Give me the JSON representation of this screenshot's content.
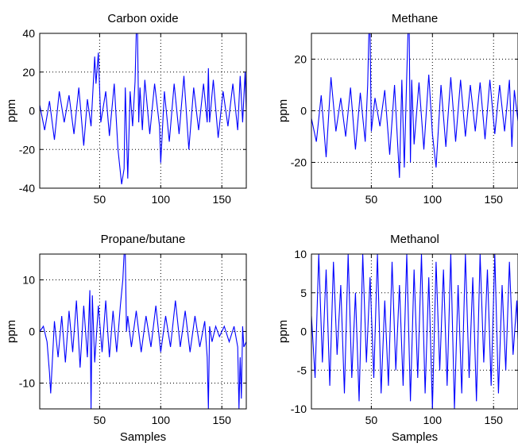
{
  "figure": {
    "background": "#ffffff",
    "line_color": "#0000ff",
    "grid_style": "dotted"
  },
  "chart_data": [
    {
      "type": "line",
      "title": "Carbon oxide",
      "xlabel": "",
      "ylabel": "ppm",
      "xlim": [
        1,
        170
      ],
      "ylim": [
        -40,
        40
      ],
      "xticks": [
        50,
        100,
        150
      ],
      "yticks": [
        -40,
        -20,
        0,
        20,
        40
      ],
      "grid": true,
      "series": [
        {
          "x": [
            1,
            5,
            9,
            13,
            17,
            21,
            25,
            29,
            33,
            37,
            40,
            43,
            46,
            47,
            49,
            51,
            55,
            58,
            62,
            65,
            68,
            70,
            71,
            73,
            75,
            77,
            79,
            80,
            81,
            82,
            83,
            85,
            87,
            91,
            95,
            99,
            100,
            103,
            107,
            111,
            115,
            119,
            123,
            127,
            131,
            135,
            138,
            139,
            140,
            143,
            147,
            151,
            155,
            159,
            163,
            165,
            167,
            169,
            170
          ],
          "y": [
            3,
            -10,
            5,
            -15,
            10,
            -6,
            8,
            -12,
            12,
            -18,
            6,
            -8,
            28,
            14,
            30,
            -6,
            10,
            -13,
            14,
            -20,
            -38,
            -30,
            12,
            -35,
            10,
            -8,
            15,
            40,
            40,
            -6,
            12,
            -10,
            16,
            -12,
            14,
            -8,
            -27,
            10,
            -16,
            14,
            -12,
            18,
            -20,
            12,
            -10,
            14,
            -6,
            22,
            -6,
            16,
            -14,
            10,
            -8,
            14,
            -10,
            18,
            -6,
            20,
            0
          ]
        }
      ]
    },
    {
      "type": "line",
      "title": "Methane",
      "xlabel": "",
      "ylabel": "ppm",
      "xlim": [
        1,
        170
      ],
      "ylim": [
        -30,
        30
      ],
      "xticks": [
        50,
        100,
        150
      ],
      "yticks": [
        -20,
        0,
        20
      ],
      "grid": true,
      "series": [
        {
          "x": [
            1,
            5,
            9,
            13,
            17,
            21,
            25,
            29,
            33,
            37,
            41,
            45,
            47,
            48,
            49,
            50,
            53,
            57,
            61,
            65,
            69,
            73,
            75,
            77,
            79,
            80,
            81,
            82,
            83,
            85,
            89,
            93,
            97,
            100,
            103,
            107,
            111,
            115,
            119,
            123,
            127,
            131,
            135,
            139,
            143,
            147,
            151,
            155,
            159,
            163,
            165,
            167,
            170
          ],
          "y": [
            -3,
            -12,
            6,
            -18,
            13,
            -8,
            5,
            -10,
            9,
            -15,
            7,
            -12,
            10,
            30,
            30,
            -8,
            5,
            -6,
            8,
            -17,
            10,
            -26,
            12,
            -22,
            14,
            30,
            30,
            -20,
            12,
            -13,
            11,
            -15,
            14,
            -9,
            -22,
            10,
            -14,
            13,
            -12,
            12,
            -10,
            10,
            -8,
            11,
            -11,
            12,
            -9,
            10,
            -8,
            12,
            -14,
            8,
            -4
          ]
        }
      ]
    },
    {
      "type": "line",
      "title": "Propane/butane",
      "xlabel": "",
      "ylabel": "ppm",
      "xlim": [
        1,
        170
      ],
      "ylim": [
        -15,
        15
      ],
      "xticks": [
        50,
        100,
        150
      ],
      "yticks": [
        -10,
        0,
        10
      ],
      "grid": true,
      "series": [
        {
          "x": [
            1,
            4,
            7,
            9,
            10,
            13,
            16,
            19,
            22,
            25,
            28,
            31,
            34,
            37,
            40,
            42,
            43,
            44,
            46,
            49,
            52,
            55,
            58,
            61,
            64,
            67,
            69,
            70,
            71,
            72,
            73,
            76,
            80,
            84,
            88,
            92,
            96,
            100,
            104,
            108,
            112,
            116,
            120,
            124,
            128,
            132,
            136,
            138,
            139,
            140,
            142,
            145,
            148,
            152,
            156,
            160,
            163,
            164,
            165,
            166,
            167,
            168,
            170
          ],
          "y": [
            0,
            1,
            -2,
            -8,
            -12,
            2,
            -5,
            3,
            -6,
            4,
            -4,
            6,
            -7,
            5,
            -5,
            8,
            -15,
            7,
            -6,
            5,
            -4,
            6,
            -5,
            4,
            -4,
            5,
            10,
            15,
            15,
            0,
            3,
            -3,
            4,
            -4,
            3,
            -3,
            5,
            -4,
            3,
            -3,
            6,
            -3,
            4,
            -4,
            3,
            -3,
            2,
            -5,
            -15,
            1,
            -2,
            1,
            -1,
            1,
            -2,
            1,
            -3,
            -15,
            -5,
            -13,
            1,
            -3,
            -2
          ]
        }
      ]
    },
    {
      "type": "line",
      "title": "Methanol",
      "xlabel": "",
      "ylabel": "ppm",
      "xlim": [
        1,
        170
      ],
      "ylim": [
        -10,
        10
      ],
      "xticks": [
        50,
        100,
        150
      ],
      "yticks": [
        -10,
        -5,
        0,
        5,
        10
      ],
      "grid": true,
      "series": [
        {
          "x": [
            1,
            4,
            7,
            10,
            13,
            16,
            19,
            22,
            25,
            28,
            31,
            34,
            37,
            40,
            43,
            46,
            49,
            52,
            55,
            58,
            61,
            64,
            67,
            70,
            73,
            76,
            79,
            82,
            85,
            88,
            91,
            94,
            97,
            100,
            103,
            106,
            109,
            112,
            115,
            118,
            121,
            124,
            127,
            130,
            133,
            136,
            139,
            142,
            145,
            148,
            151,
            154,
            157,
            160,
            163,
            166,
            169,
            170
          ],
          "y": [
            2,
            -6,
            10,
            -4,
            8,
            -7,
            9,
            -3,
            6,
            -8,
            10,
            -6,
            5,
            -9,
            10,
            -4,
            7,
            -6,
            10,
            -8,
            4,
            -7,
            9,
            -5,
            6,
            -7,
            10,
            -9,
            8,
            -6,
            10,
            -8,
            7,
            -10,
            9,
            -5,
            8,
            -7,
            10,
            -10,
            6,
            -8,
            10,
            -6,
            7,
            -9,
            10,
            -4,
            8,
            -7,
            10,
            -8,
            6,
            -5,
            9,
            -3,
            4,
            -1
          ]
        }
      ]
    }
  ],
  "xaxis_bottom_label": "Samples"
}
